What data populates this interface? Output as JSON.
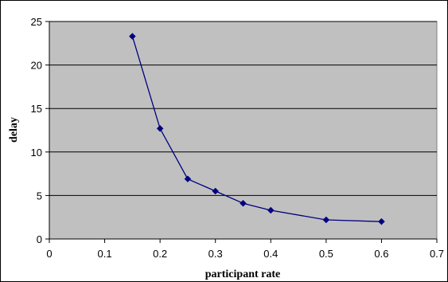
{
  "chart_data": {
    "type": "line",
    "title": "",
    "xlabel": "participant rate",
    "ylabel": "delay",
    "xlim": [
      0,
      0.7
    ],
    "ylim": [
      0,
      25
    ],
    "xticks": [
      0,
      0.1,
      0.2,
      0.3,
      0.4,
      0.5,
      0.6,
      0.7
    ],
    "xtick_labels": [
      "0",
      "0.1",
      "0.2",
      "0.3",
      "0.4",
      "0.5",
      "0.6",
      "0.7"
    ],
    "yticks": [
      0,
      5,
      10,
      15,
      20,
      25
    ],
    "ytick_labels": [
      "0",
      "5",
      "10",
      "15",
      "20",
      "25"
    ],
    "grid": "horizontal",
    "legend": "none",
    "plot_background": "#c0c0c0",
    "series": [
      {
        "color": "#000080",
        "marker": "diamond",
        "x": [
          0.15,
          0.2,
          0.25,
          0.3,
          0.35,
          0.4,
          0.5,
          0.6
        ],
        "y": [
          23.3,
          12.7,
          6.9,
          5.5,
          4.1,
          3.3,
          2.2,
          2.0
        ]
      }
    ]
  }
}
